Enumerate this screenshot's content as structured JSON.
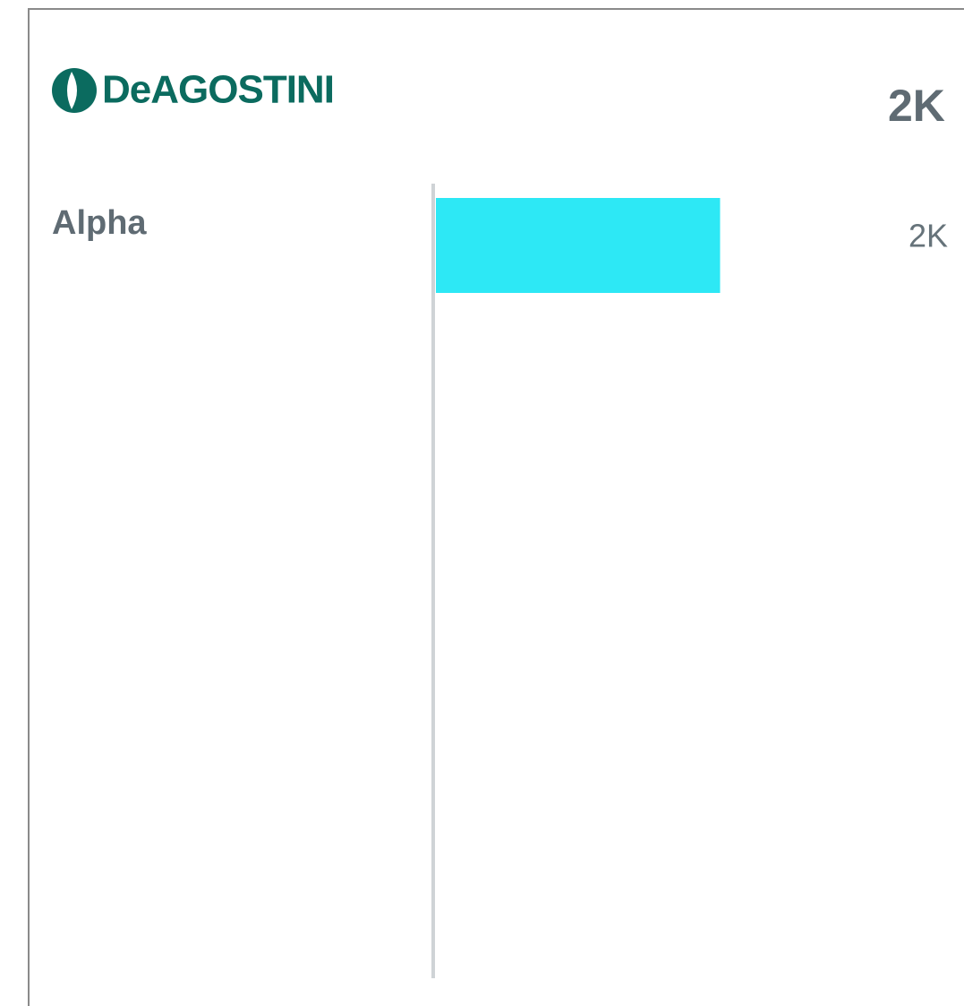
{
  "chart_data": {
    "type": "bar",
    "orientation": "horizontal",
    "logo": "DeAGOSTINI",
    "total": {
      "value": 2000,
      "label": "2K"
    },
    "categories": [
      "Alpha"
    ],
    "values": [
      2000
    ],
    "value_labels": [
      "2K"
    ],
    "color": "#2de8f5",
    "xlim": [
      0,
      3200
    ]
  }
}
